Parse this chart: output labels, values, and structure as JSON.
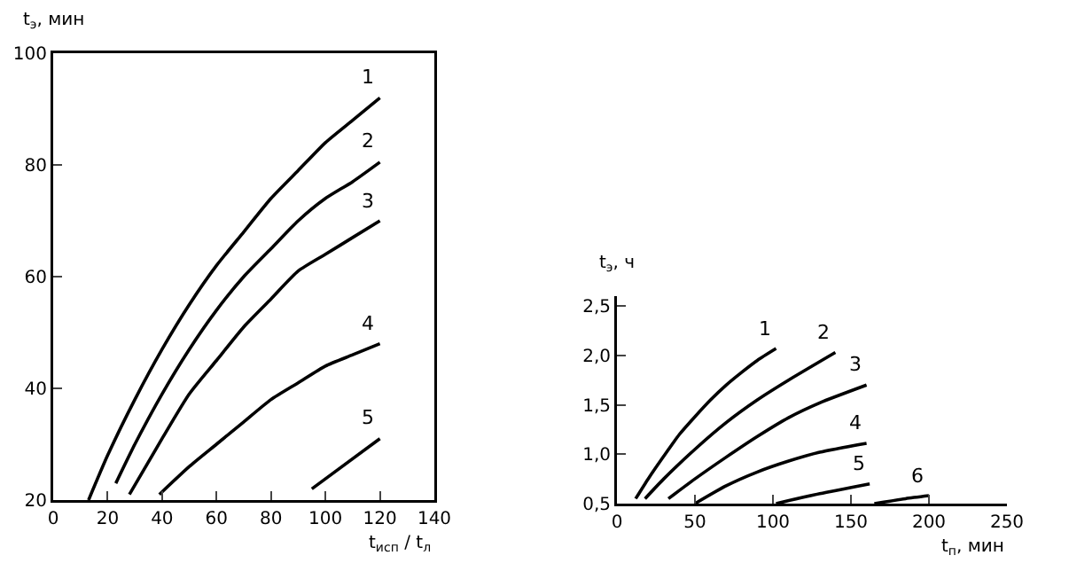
{
  "chart_data": [
    {
      "type": "line",
      "ylabel": "t$_{э}$, мин",
      "xlabel": "t$_{исп}$ / t$_{л}$",
      "xlim": [
        0,
        140
      ],
      "ylim": [
        20,
        100
      ],
      "xticks": [
        0,
        20,
        40,
        60,
        80,
        100,
        120,
        140
      ],
      "yticks": [
        20,
        40,
        60,
        80,
        100
      ],
      "grid": false,
      "legend": false,
      "marker": "none",
      "line_style": "solid",
      "series": [
        {
          "name": "1",
          "color": "#000000",
          "x": [
            13,
            20,
            30,
            40,
            50,
            60,
            70,
            80,
            90,
            100,
            110,
            120
          ],
          "values": [
            20,
            28,
            38,
            47,
            55,
            62,
            68,
            74,
            79,
            84,
            88,
            92
          ]
        },
        {
          "name": "2",
          "color": "#000000",
          "x": [
            23,
            30,
            40,
            50,
            60,
            70,
            80,
            90,
            100,
            110,
            120
          ],
          "values": [
            23,
            30,
            39,
            47,
            54,
            60,
            65,
            70,
            74,
            77,
            80.5
          ]
        },
        {
          "name": "3",
          "color": "#000000",
          "x": [
            28,
            40,
            50,
            60,
            70,
            80,
            90,
            100,
            110,
            120
          ],
          "values": [
            21,
            31,
            39,
            45,
            51,
            56,
            61,
            64,
            67,
            70
          ]
        },
        {
          "name": "4",
          "color": "#000000",
          "x": [
            39,
            50,
            60,
            70,
            80,
            90,
            100,
            110,
            120
          ],
          "values": [
            21,
            26,
            30,
            34,
            38,
            41,
            44,
            46,
            48
          ]
        },
        {
          "name": "5",
          "color": "#000000",
          "x": [
            95,
            120
          ],
          "values": [
            22,
            31
          ]
        }
      ]
    },
    {
      "type": "line",
      "ylabel": "t$_{э}$, ч",
      "xlabel": "t$_{п}$, мин",
      "xlim": [
        0,
        250
      ],
      "ylim": [
        0.5,
        2.6
      ],
      "xticks": [
        0,
        50,
        100,
        150,
        200,
        250
      ],
      "yticks": [
        {
          "value": 0.5,
          "label": "0,5"
        },
        {
          "value": 1,
          "label": "1,0"
        },
        {
          "value": 1.5,
          "label": "1,5"
        },
        {
          "value": 2,
          "label": "2,0"
        },
        {
          "value": 2.5,
          "label": "2,5"
        }
      ],
      "grid": false,
      "legend": false,
      "marker": "none",
      "line_style": "solid",
      "series": [
        {
          "name": "1",
          "color": "#000000",
          "x": [
            12,
            20,
            30,
            40,
            50,
            60,
            70,
            80,
            90,
            102
          ],
          "values": [
            0.55,
            0.75,
            0.98,
            1.2,
            1.38,
            1.55,
            1.7,
            1.83,
            1.95,
            2.07
          ]
        },
        {
          "name": "2",
          "color": "#000000",
          "x": [
            18,
            30,
            50,
            70,
            90,
            110,
            140
          ],
          "values": [
            0.55,
            0.75,
            1.05,
            1.32,
            1.55,
            1.75,
            2.03
          ]
        },
        {
          "name": "3",
          "color": "#000000",
          "x": [
            33,
            50,
            70,
            90,
            110,
            130,
            160
          ],
          "values": [
            0.55,
            0.75,
            0.97,
            1.18,
            1.37,
            1.52,
            1.7
          ]
        },
        {
          "name": "4",
          "color": "#000000",
          "x": [
            50,
            70,
            90,
            110,
            130,
            160
          ],
          "values": [
            0.5,
            0.68,
            0.82,
            0.93,
            1.02,
            1.11
          ]
        },
        {
          "name": "5",
          "color": "#000000",
          "x": [
            102,
            130,
            162
          ],
          "values": [
            0.5,
            0.6,
            0.7
          ]
        },
        {
          "name": "6",
          "color": "#000000",
          "x": [
            165,
            185,
            200
          ],
          "values": [
            0.5,
            0.55,
            0.58
          ]
        }
      ]
    }
  ]
}
